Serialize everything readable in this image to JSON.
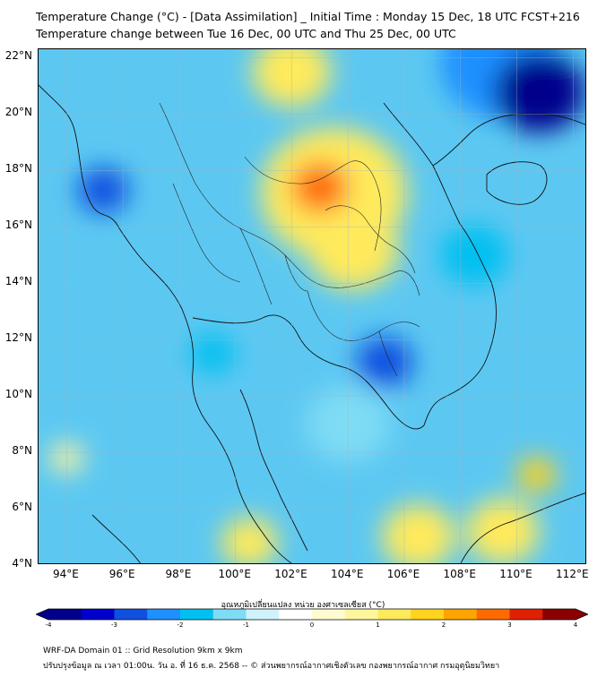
{
  "header": {
    "title_line1": "Temperature Change (°C) - [Data Assimilation] _ Initial Time : Monday 15 Dec, 18 UTC FCST+216",
    "title_line2": "Temperature change between Tue 16 Dec, 00 UTC and Thu 25 Dec, 00 UTC"
  },
  "map": {
    "lon_range": [
      93,
      112.5
    ],
    "lat_range": [
      4,
      22.3
    ],
    "lat_labels": [
      "4°N",
      "6°N",
      "8°N",
      "10°N",
      "12°N",
      "14°N",
      "16°N",
      "18°N",
      "20°N",
      "22°N"
    ],
    "lat_values": [
      4,
      6,
      8,
      10,
      12,
      14,
      16,
      18,
      20,
      22
    ],
    "lon_labels": [
      "94°E",
      "96°E",
      "98°E",
      "100°E",
      "102°E",
      "104°E",
      "106°E",
      "108°E",
      "110°E",
      "112°E"
    ],
    "lon_values": [
      94,
      96,
      98,
      100,
      102,
      104,
      106,
      108,
      110,
      112
    ],
    "field_blobs": [
      {
        "lon": 103,
        "lat": 17.4,
        "value": 2.8,
        "spread": 1.0
      },
      {
        "lon": 103.5,
        "lat": 17.2,
        "value": 1.2,
        "spread": 2.6
      },
      {
        "lon": 102,
        "lat": 21.5,
        "value": 1.2,
        "spread": 1.4
      },
      {
        "lon": 104.2,
        "lat": 15.2,
        "value": 1.0,
        "spread": 1.6
      },
      {
        "lon": 110.8,
        "lat": 20.8,
        "value": -3.8,
        "spread": 1.6
      },
      {
        "lon": 109.5,
        "lat": 21.8,
        "value": -2.5,
        "spread": 2.2
      },
      {
        "lon": 95.3,
        "lat": 17.3,
        "value": -2.6,
        "spread": 0.9
      },
      {
        "lon": 105.3,
        "lat": 11.2,
        "value": -3.0,
        "spread": 1.0
      },
      {
        "lon": 99.2,
        "lat": 11.5,
        "value": -2.0,
        "spread": 0.8
      },
      {
        "lon": 110.7,
        "lat": 7.2,
        "value": 1.7,
        "spread": 0.7
      },
      {
        "lon": 106.5,
        "lat": 5.0,
        "value": 1.2,
        "spread": 1.3
      },
      {
        "lon": 109.5,
        "lat": 5.2,
        "value": 1.0,
        "spread": 1.3
      },
      {
        "lon": 100.5,
        "lat": 4.8,
        "value": 1.0,
        "spread": 1.0
      },
      {
        "lon": 94,
        "lat": 7.8,
        "value": 0.9,
        "spread": 0.6
      },
      {
        "lon": 108.5,
        "lat": 15,
        "value": -1.8,
        "spread": 1.2
      },
      {
        "lon": 104,
        "lat": 9,
        "value": -1.2,
        "spread": 1.5
      }
    ]
  },
  "colorbar": {
    "label": "อุณหภูมิเปลี่ยนแปลง หน่วย องศาเซลเซียส (°C)",
    "ticks": [
      "-4",
      "-3",
      "-2",
      "-1",
      "0",
      "1",
      "2",
      "3",
      "4"
    ],
    "tick_values": [
      -4,
      -3,
      -2,
      -1,
      0,
      1,
      2,
      3,
      4
    ],
    "range": [
      -4,
      4
    ],
    "colors": [
      "#00008b",
      "#0000cd",
      "#1050e0",
      "#1e90ff",
      "#00c0f0",
      "#7fdcf5",
      "#d0f2fb",
      "#ffffff",
      "#fffbd0",
      "#fff59d",
      "#ffea5c",
      "#ffd21e",
      "#ffa500",
      "#ff6a00",
      "#e02000",
      "#8b0000"
    ]
  },
  "footer": {
    "line1": "WRF-DA Domain 01 :: Grid Resolution 9km x 9km",
    "line2": "ปรับปรุงข้อมูล ณ เวลา 01:00น. วัน อ. ที่ 16 ธ.ค. 2568 -- © ส่วนพยากรณ์อากาศเชิงตัวเลข กองพยากรณ์อากาศ กรมอุตุนิยมวิทยา"
  }
}
